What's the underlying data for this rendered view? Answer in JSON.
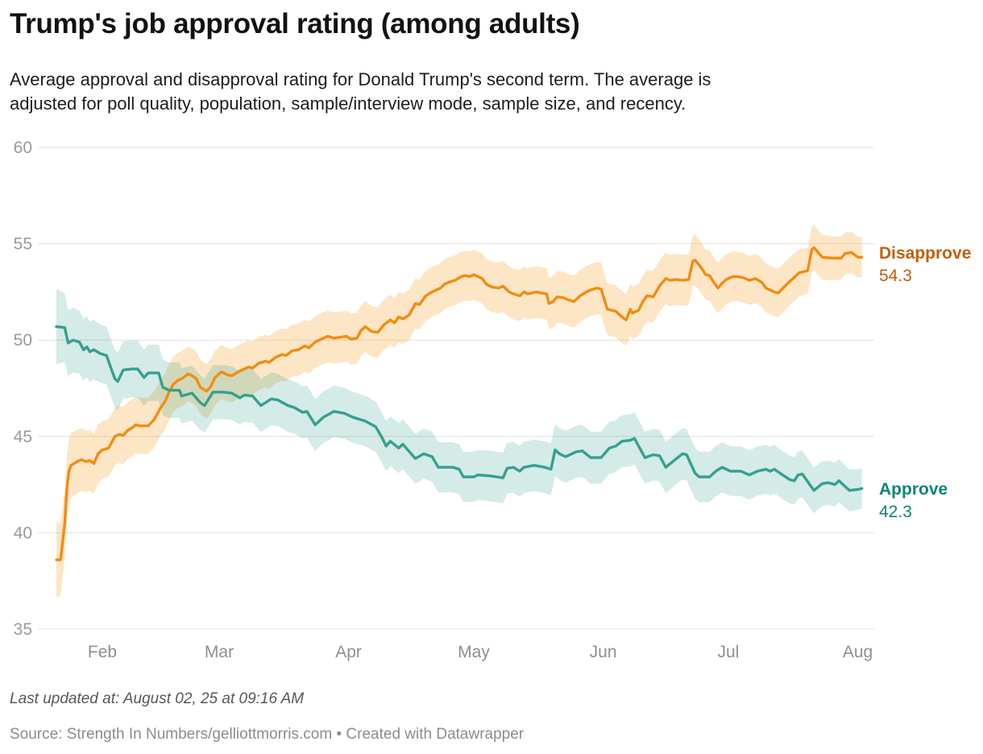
{
  "header": {
    "title": "Trump's job approval rating (among adults)",
    "subtitle_lines": [
      "Average approval and disapproval rating for Donald Trump's second term. The average is",
      "adjusted for poll quality, population, sample/interview mode, sample size, and recency."
    ]
  },
  "footer": {
    "updated": "Last updated at: August 02, 25 at 09:16 AM",
    "source": "Source: Strength In Numbers/gelliottmorris.com • Created with Datawrapper"
  },
  "chart_data": {
    "type": "line",
    "title": "Trump's job approval rating (among adults)",
    "x_axis": {
      "note": "day index 0 = first data point (late Jan); ticks fall on month starts",
      "ticks": [
        {
          "label": "Feb",
          "day": 11
        },
        {
          "label": "Mar",
          "day": 39
        },
        {
          "label": "Apr",
          "day": 70
        },
        {
          "label": "May",
          "day": 100
        },
        {
          "label": "Jun",
          "day": 131
        },
        {
          "label": "Jul",
          "day": 161
        },
        {
          "label": "Aug",
          "day": 192
        }
      ],
      "range_days": [
        0,
        193
      ]
    },
    "y_axis": {
      "ticks": [
        60,
        55,
        50,
        45,
        40,
        35
      ],
      "range": [
        35,
        60
      ]
    },
    "grid_color": "#e0e0e0",
    "y_label_color": "#9a9a9a",
    "x_label_color": "#8f8f8f",
    "band_halfwidth": [
      [
        0,
        1.95
      ],
      [
        3,
        1.7
      ],
      [
        11,
        1.5
      ],
      [
        25,
        1.45
      ],
      [
        39,
        1.4
      ],
      [
        60,
        1.35
      ],
      [
        80,
        1.3
      ],
      [
        100,
        1.3
      ],
      [
        120,
        1.35
      ],
      [
        140,
        1.35
      ],
      [
        160,
        1.3
      ],
      [
        175,
        1.25
      ],
      [
        185,
        1.15
      ],
      [
        193,
        1.05
      ]
    ],
    "series": [
      {
        "name": "Disapprove",
        "end_label": "54.3",
        "end_value": 54.3,
        "color": "#f28c11",
        "band_color": "rgba(243,157,30,0.26)",
        "label_color": "#c05f0c",
        "points": [
          [
            0,
            38.6
          ],
          [
            1,
            38.6
          ],
          [
            2,
            40.5
          ],
          [
            2.5,
            42.3
          ],
          [
            3,
            43.2
          ],
          [
            3.5,
            43.5
          ],
          [
            5,
            43.7
          ],
          [
            6,
            43.8
          ],
          [
            7,
            43.7
          ],
          [
            8,
            43.75
          ],
          [
            9,
            43.6
          ],
          [
            10,
            44.1
          ],
          [
            11,
            44.3
          ],
          [
            12.5,
            44.4
          ],
          [
            14,
            45.0
          ],
          [
            15,
            45.1
          ],
          [
            16,
            45.05
          ],
          [
            17,
            45.3
          ],
          [
            18.5,
            45.5
          ],
          [
            19,
            45.6
          ],
          [
            20,
            45.55
          ],
          [
            22,
            45.55
          ],
          [
            23.5,
            45.9
          ],
          [
            25,
            46.5
          ],
          [
            26,
            46.8
          ],
          [
            27,
            47.3
          ],
          [
            28,
            47.7
          ],
          [
            29,
            47.9
          ],
          [
            30,
            48.0
          ],
          [
            31,
            48.15
          ],
          [
            31.5,
            48.25
          ],
          [
            32.5,
            48.15
          ],
          [
            33.5,
            48.0
          ],
          [
            34.5,
            47.55
          ],
          [
            36,
            47.35
          ],
          [
            37,
            47.6
          ],
          [
            38,
            48.05
          ],
          [
            39.5,
            48.35
          ],
          [
            41,
            48.2
          ],
          [
            42,
            48.15
          ],
          [
            44,
            48.4
          ],
          [
            46,
            48.6
          ],
          [
            47,
            48.55
          ],
          [
            48.5,
            48.8
          ],
          [
            50,
            48.9
          ],
          [
            51,
            48.85
          ],
          [
            52.5,
            49.1
          ],
          [
            54,
            49.25
          ],
          [
            55,
            49.2
          ],
          [
            56.5,
            49.45
          ],
          [
            58,
            49.5
          ],
          [
            59.5,
            49.7
          ],
          [
            60.5,
            49.6
          ],
          [
            62,
            49.9
          ],
          [
            64,
            50.1
          ],
          [
            65,
            50.2
          ],
          [
            66.5,
            50.1
          ],
          [
            68,
            50.15
          ],
          [
            69.5,
            50.2
          ],
          [
            70.5,
            50.05
          ],
          [
            72,
            50.1
          ],
          [
            73,
            50.5
          ],
          [
            74,
            50.7
          ],
          [
            75.5,
            50.45
          ],
          [
            77,
            50.4
          ],
          [
            78.5,
            50.8
          ],
          [
            80,
            51.05
          ],
          [
            81,
            50.9
          ],
          [
            82,
            51.2
          ],
          [
            83,
            51.1
          ],
          [
            84.5,
            51.3
          ],
          [
            86,
            51.9
          ],
          [
            87,
            51.85
          ],
          [
            88.5,
            52.3
          ],
          [
            90,
            52.5
          ],
          [
            92,
            52.7
          ],
          [
            93,
            52.9
          ],
          [
            94,
            53.0
          ],
          [
            95.5,
            53.1
          ],
          [
            97,
            53.3
          ],
          [
            98,
            53.35
          ],
          [
            99,
            53.3
          ],
          [
            100,
            53.4
          ],
          [
            102,
            53.2
          ],
          [
            103,
            52.9
          ],
          [
            104.5,
            52.75
          ],
          [
            106,
            52.7
          ],
          [
            107,
            52.8
          ],
          [
            108.5,
            52.5
          ],
          [
            109.5,
            52.4
          ],
          [
            111,
            52.3
          ],
          [
            112,
            52.5
          ],
          [
            113,
            52.4
          ],
          [
            115,
            52.5
          ],
          [
            116,
            52.45
          ],
          [
            117.5,
            52.4
          ],
          [
            118,
            51.9
          ],
          [
            119,
            52.0
          ],
          [
            120,
            52.25
          ],
          [
            121.5,
            52.2
          ],
          [
            122.5,
            52.1
          ],
          [
            124,
            52.0
          ],
          [
            125.5,
            52.3
          ],
          [
            127,
            52.5
          ],
          [
            128,
            52.6
          ],
          [
            129.5,
            52.7
          ],
          [
            130.5,
            52.65
          ],
          [
            132,
            51.6
          ],
          [
            134,
            51.5
          ],
          [
            135.5,
            51.2
          ],
          [
            136.5,
            51.05
          ],
          [
            137.5,
            51.6
          ],
          [
            138,
            51.4
          ],
          [
            139.5,
            51.55
          ],
          [
            140.5,
            52.0
          ],
          [
            141.5,
            52.3
          ],
          [
            143,
            52.25
          ],
          [
            144.5,
            52.8
          ],
          [
            146,
            53.2
          ],
          [
            147,
            53.1
          ],
          [
            148.5,
            53.15
          ],
          [
            150,
            53.1
          ],
          [
            151.5,
            53.15
          ],
          [
            152.5,
            54.1
          ],
          [
            153,
            54.15
          ],
          [
            154,
            53.9
          ],
          [
            155,
            53.6
          ],
          [
            155.5,
            53.4
          ],
          [
            156.5,
            53.35
          ],
          [
            157.5,
            53.0
          ],
          [
            158.5,
            52.7
          ],
          [
            159.5,
            52.95
          ],
          [
            160.5,
            53.15
          ],
          [
            162,
            53.3
          ],
          [
            163,
            53.3
          ],
          [
            164.5,
            53.25
          ],
          [
            166,
            53.1
          ],
          [
            167.5,
            53.2
          ],
          [
            169,
            53.0
          ],
          [
            170,
            52.7
          ],
          [
            172,
            52.5
          ],
          [
            173,
            52.45
          ],
          [
            175,
            52.9
          ],
          [
            177,
            53.3
          ],
          [
            178,
            53.5
          ],
          [
            180,
            53.6
          ],
          [
            181,
            54.7
          ],
          [
            181.5,
            54.8
          ],
          [
            183.5,
            54.3
          ],
          [
            186,
            54.25
          ],
          [
            188,
            54.25
          ],
          [
            189,
            54.5
          ],
          [
            190.5,
            54.55
          ],
          [
            192,
            54.3
          ],
          [
            193,
            54.3
          ]
        ]
      },
      {
        "name": "Approve",
        "end_label": "42.3",
        "end_value": 42.3,
        "color": "#35a08e",
        "band_color": "rgba(61,164,145,0.22)",
        "label_color": "#0f8577",
        "points": [
          [
            0,
            50.7
          ],
          [
            2,
            50.65
          ],
          [
            2.8,
            49.85
          ],
          [
            4,
            50.0
          ],
          [
            5.5,
            49.9
          ],
          [
            6.5,
            49.5
          ],
          [
            7.3,
            49.65
          ],
          [
            8,
            49.4
          ],
          [
            9,
            49.5
          ],
          [
            10.5,
            49.3
          ],
          [
            12,
            49.2
          ],
          [
            13,
            48.6
          ],
          [
            14,
            48.0
          ],
          [
            14.7,
            47.85
          ],
          [
            16,
            48.45
          ],
          [
            18,
            48.5
          ],
          [
            19.5,
            48.5
          ],
          [
            21,
            48.05
          ],
          [
            22,
            48.3
          ],
          [
            24.5,
            48.3
          ],
          [
            25.5,
            47.55
          ],
          [
            27,
            47.4
          ],
          [
            29.5,
            47.4
          ],
          [
            30,
            47.1
          ],
          [
            32.5,
            47.25
          ],
          [
            34.5,
            46.75
          ],
          [
            35.5,
            46.6
          ],
          [
            37.5,
            47.3
          ],
          [
            40,
            47.3
          ],
          [
            42,
            47.25
          ],
          [
            44,
            47.0
          ],
          [
            45,
            47.15
          ],
          [
            47,
            47.1
          ],
          [
            49,
            46.6
          ],
          [
            51.5,
            46.95
          ],
          [
            53,
            46.9
          ],
          [
            55.5,
            46.6
          ],
          [
            57,
            46.5
          ],
          [
            59,
            46.25
          ],
          [
            60,
            46.3
          ],
          [
            62,
            45.6
          ],
          [
            64,
            46.0
          ],
          [
            66.5,
            46.3
          ],
          [
            69,
            46.2
          ],
          [
            71,
            46.0
          ],
          [
            74,
            45.8
          ],
          [
            76.5,
            45.5
          ],
          [
            78,
            44.95
          ],
          [
            79,
            44.5
          ],
          [
            80,
            44.75
          ],
          [
            82,
            44.4
          ],
          [
            83,
            44.6
          ],
          [
            86,
            43.85
          ],
          [
            88,
            44.1
          ],
          [
            90,
            43.95
          ],
          [
            91.5,
            43.4
          ],
          [
            95,
            43.4
          ],
          [
            96.5,
            43.3
          ],
          [
            97.5,
            42.9
          ],
          [
            100,
            42.9
          ],
          [
            101,
            43.0
          ],
          [
            104,
            42.95
          ],
          [
            107,
            42.85
          ],
          [
            108,
            43.35
          ],
          [
            109.5,
            43.4
          ],
          [
            111,
            43.2
          ],
          [
            112,
            43.4
          ],
          [
            114.5,
            43.5
          ],
          [
            117,
            43.4
          ],
          [
            118.5,
            43.3
          ],
          [
            119.5,
            44.3
          ],
          [
            120.5,
            44.1
          ],
          [
            122,
            43.95
          ],
          [
            124.5,
            44.2
          ],
          [
            126,
            44.25
          ],
          [
            128,
            43.9
          ],
          [
            130.5,
            43.9
          ],
          [
            132.5,
            44.4
          ],
          [
            134,
            44.5
          ],
          [
            135.5,
            44.75
          ],
          [
            137.5,
            44.8
          ],
          [
            138.5,
            44.9
          ],
          [
            141,
            43.9
          ],
          [
            143,
            44.05
          ],
          [
            144.5,
            44.0
          ],
          [
            146,
            43.4
          ],
          [
            148,
            43.75
          ],
          [
            150,
            44.1
          ],
          [
            151,
            44.05
          ],
          [
            153,
            43.1
          ],
          [
            154,
            42.9
          ],
          [
            156.5,
            42.9
          ],
          [
            158,
            43.2
          ],
          [
            159.5,
            43.4
          ],
          [
            161.5,
            43.2
          ],
          [
            164,
            43.2
          ],
          [
            166,
            43.0
          ],
          [
            168,
            43.2
          ],
          [
            170,
            43.3
          ],
          [
            171,
            43.2
          ],
          [
            172,
            43.3
          ],
          [
            174,
            43.0
          ],
          [
            175.8,
            42.75
          ],
          [
            176.8,
            42.7
          ],
          [
            177.7,
            43.0
          ],
          [
            178.7,
            43.05
          ],
          [
            180.5,
            42.5
          ],
          [
            181.5,
            42.2
          ],
          [
            183.5,
            42.55
          ],
          [
            185,
            42.6
          ],
          [
            186.5,
            42.5
          ],
          [
            187.5,
            42.7
          ],
          [
            189,
            42.4
          ],
          [
            190,
            42.2
          ],
          [
            192,
            42.25
          ],
          [
            193,
            42.3
          ]
        ]
      }
    ]
  }
}
